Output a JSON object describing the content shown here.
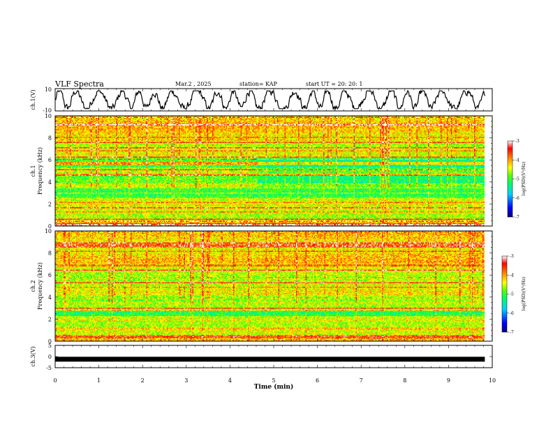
{
  "header": {
    "title": "VLF Spectra",
    "date": "Mar.2  , 2025",
    "station": "station= KAP",
    "start": "start  UT =   20: 20: 1"
  },
  "chart_data": [
    {
      "type": "line",
      "panel": "ch1-waveform",
      "ylabel": "ch.1(V)",
      "ylim": [
        -10,
        10
      ],
      "yticks": [
        "10",
        "-10"
      ],
      "xlim": [
        0,
        10
      ],
      "description_values": "waveform oscillating roughly between -7 and 7 V over 0–9.8 min"
    },
    {
      "type": "heatmap",
      "panel": "ch1-spectrogram",
      "ylabel_line1": "ch.1",
      "ylabel_line2": "Frequency (kHz)",
      "ylim": [
        0,
        10
      ],
      "yticks": [
        "0",
        "2",
        "4",
        "6",
        "8",
        "10"
      ],
      "xlim": [
        0,
        10
      ],
      "data_extent_x": 9.83,
      "colorbar": {
        "label": "log(PSD)(V²/Hz)",
        "range": [
          -7,
          -3
        ],
        "ticks": [
          "-3",
          "-4",
          "-5",
          "-6",
          "-7"
        ]
      }
    },
    {
      "type": "heatmap",
      "panel": "ch2-spectrogram",
      "ylabel_line1": "ch.2",
      "ylabel_line2": "Frequency (kHz)",
      "ylim": [
        0,
        10
      ],
      "yticks": [
        "0",
        "2",
        "4",
        "6",
        "8",
        "10"
      ],
      "xlim": [
        0,
        10
      ],
      "data_extent_x": 9.83,
      "colorbar": {
        "label": "log(PSD)(V²/Hz)",
        "range": [
          -7,
          -3
        ],
        "ticks": [
          "-3",
          "-4",
          "-5",
          "-6",
          "-7"
        ]
      }
    },
    {
      "type": "line",
      "panel": "ch3-waveform",
      "ylabel": "ch.3(V)",
      "ylim": [
        -5,
        5
      ],
      "yticks": [
        "5",
        "0",
        "-5"
      ],
      "xlim": [
        0,
        10
      ],
      "xlabel": "Time (min)",
      "xticks": [
        "0",
        "1",
        "2",
        "3",
        "4",
        "5",
        "6",
        "7",
        "8",
        "9",
        "10"
      ],
      "level": -1.2
    }
  ],
  "colors": {
    "scale": [
      "#000080",
      "#0000ff",
      "#00c0ff",
      "#00ff80",
      "#00ff00",
      "#a0ff00",
      "#ffff00",
      "#ffc000",
      "#ff4000",
      "#ff0000",
      "#ffffff"
    ]
  }
}
